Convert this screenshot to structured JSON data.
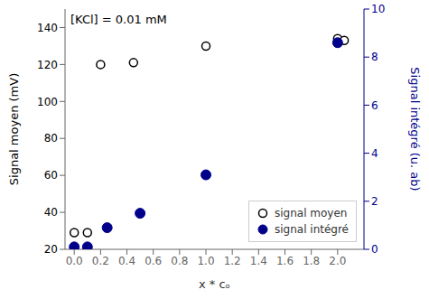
{
  "chart_data": {
    "type": "scatter",
    "xlabel": "x * cₒ",
    "ylabel": "Signal moyen (mV)",
    "y2label": "Signal intégré (u. ab)",
    "annotation": "[KCl] = 0.01 mM",
    "xlim": [
      -0.07,
      2.2
    ],
    "xticks": [
      {
        "value": 0.0,
        "label": "0.0"
      },
      0.2,
      0.4,
      0.6,
      0.8,
      {
        "value": 1.0,
        "label": "1.0"
      },
      1.2,
      1.4,
      1.6,
      1.8,
      {
        "value": 2.0,
        "label": "2.0"
      }
    ],
    "ylim": [
      20,
      150
    ],
    "yticks": [
      20,
      40,
      60,
      80,
      100,
      120,
      140
    ],
    "y2lim": [
      0,
      10
    ],
    "y2ticks": [
      0,
      2,
      4,
      6,
      8,
      10
    ],
    "grid": false,
    "legend": "lower right",
    "series": [
      {
        "name": "signal moyen",
        "color": "black",
        "marker": "open_circle",
        "x": [
          0.0,
          0.1,
          0.2,
          0.45,
          1.0,
          2.0,
          2.05
        ],
        "values": [
          29,
          29,
          120,
          121,
          130,
          134,
          133
        ]
      },
      {
        "name": "signal intégré",
        "color": "#00008B",
        "marker": "circle",
        "axis": "y2",
        "x": [
          0.0,
          0.1,
          0.25,
          0.5,
          1.0,
          2.0
        ],
        "values": [
          0.1,
          0.1,
          0.9,
          1.5,
          3.1,
          8.6
        ]
      }
    ]
  }
}
